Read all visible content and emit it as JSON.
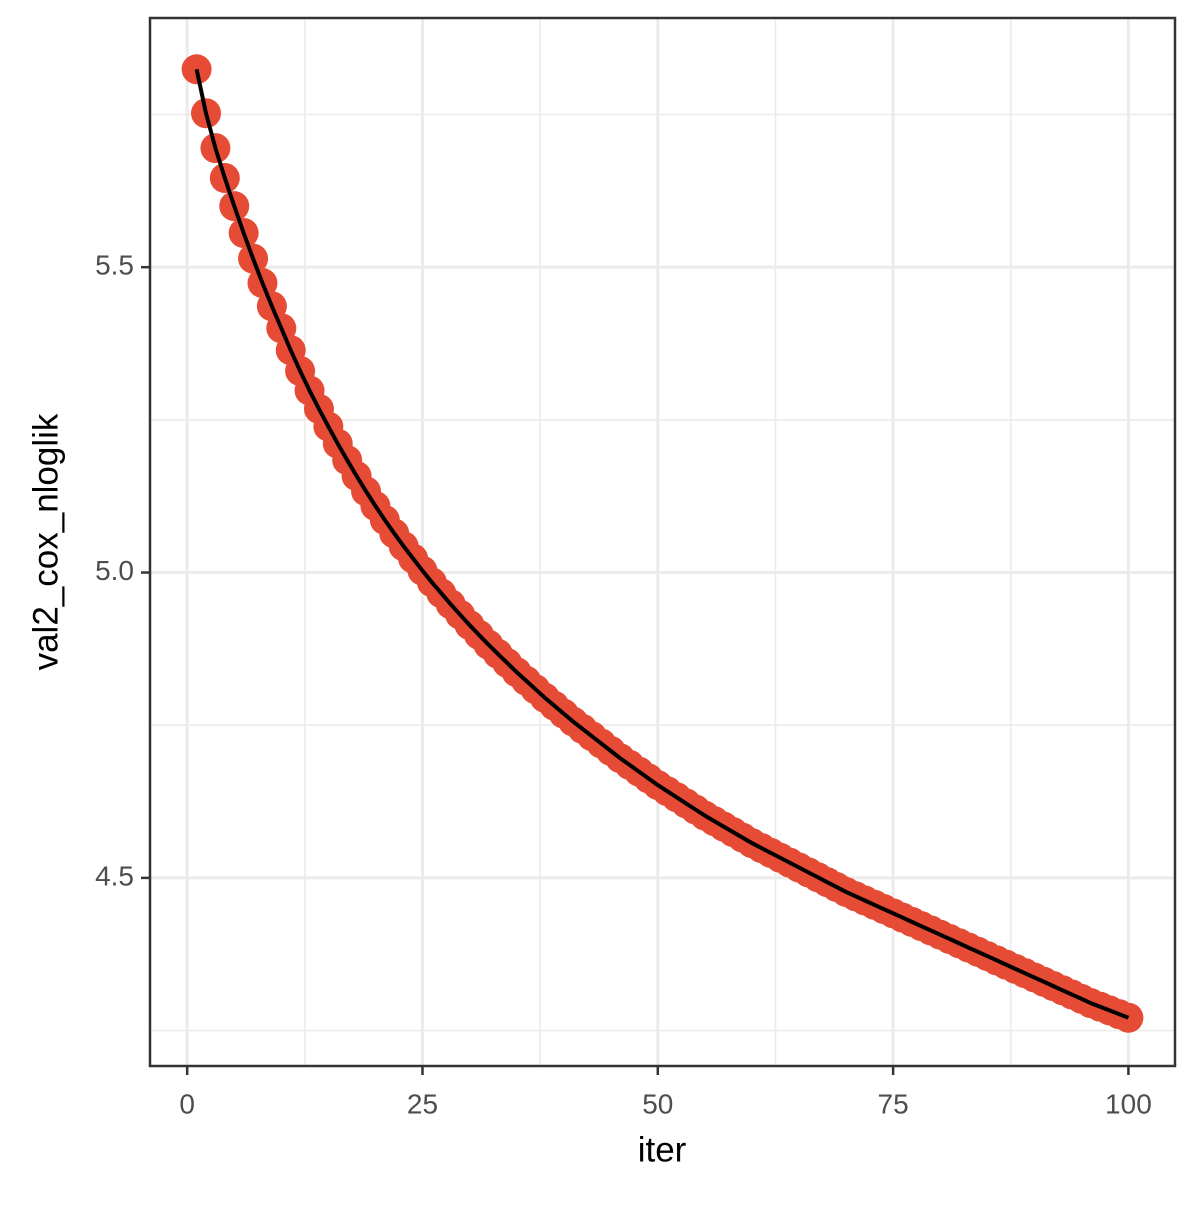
{
  "chart_data": {
    "type": "line",
    "x_label": "iter",
    "y_label": "val2_cox_nloglik",
    "x": [
      1,
      2,
      3,
      4,
      5,
      6,
      7,
      8,
      9,
      10,
      11,
      12,
      13,
      14,
      15,
      16,
      17,
      18,
      19,
      20,
      21,
      22,
      23,
      24,
      25,
      26,
      27,
      28,
      29,
      30,
      31,
      32,
      33,
      34,
      35,
      36,
      37,
      38,
      39,
      40,
      41,
      42,
      43,
      44,
      45,
      46,
      47,
      48,
      49,
      50,
      51,
      52,
      53,
      54,
      55,
      56,
      57,
      58,
      59,
      60,
      61,
      62,
      63,
      64,
      65,
      66,
      67,
      68,
      69,
      70,
      71,
      72,
      73,
      74,
      75,
      76,
      77,
      78,
      79,
      80,
      81,
      82,
      83,
      84,
      85,
      86,
      87,
      88,
      89,
      90,
      91,
      92,
      93,
      94,
      95,
      96,
      97,
      98,
      99,
      100
    ],
    "series": [
      {
        "color": "#e64b35",
        "line_color": "#000000",
        "values": [
          5.824,
          5.752,
          5.695,
          5.646,
          5.6,
          5.556,
          5.514,
          5.474,
          5.436,
          5.4,
          5.364,
          5.33,
          5.298,
          5.268,
          5.239,
          5.211,
          5.184,
          5.158,
          5.133,
          5.109,
          5.086,
          5.064,
          5.043,
          5.023,
          5.003,
          4.984,
          4.966,
          4.948,
          4.931,
          4.914,
          4.898,
          4.882,
          4.867,
          4.852,
          4.837,
          4.823,
          4.809,
          4.795,
          4.782,
          4.769,
          4.756,
          4.744,
          4.732,
          4.72,
          4.708,
          4.696,
          4.685,
          4.674,
          4.663,
          4.652,
          4.642,
          4.632,
          4.622,
          4.612,
          4.602,
          4.593,
          4.584,
          4.575,
          4.566,
          4.557,
          4.549,
          4.541,
          4.533,
          4.525,
          4.517,
          4.509,
          4.501,
          4.493,
          4.485,
          4.477,
          4.47,
          4.463,
          4.456,
          4.449,
          4.442,
          4.435,
          4.428,
          4.421,
          4.414,
          4.407,
          4.4,
          4.393,
          4.386,
          4.379,
          4.372,
          4.365,
          4.358,
          4.351,
          4.344,
          4.337,
          4.33,
          4.323,
          4.316,
          4.309,
          4.302,
          4.295,
          4.289,
          4.283,
          4.277,
          4.271
        ]
      }
    ],
    "xlim": [
      -3.95,
      104.95
    ],
    "ylim": [
      4.192,
      5.908
    ],
    "xticks": [
      0,
      25,
      50,
      75,
      100
    ],
    "yticks": [
      4.5,
      {
        "value": 5,
        "label": "5.0"
      },
      5.5
    ],
    "x_minor_grid": [
      12.5,
      37.5,
      62.5,
      87.5
    ],
    "y_minor_grid": [
      4.25,
      4.75,
      5.25,
      5.75
    ],
    "grid": true
  }
}
